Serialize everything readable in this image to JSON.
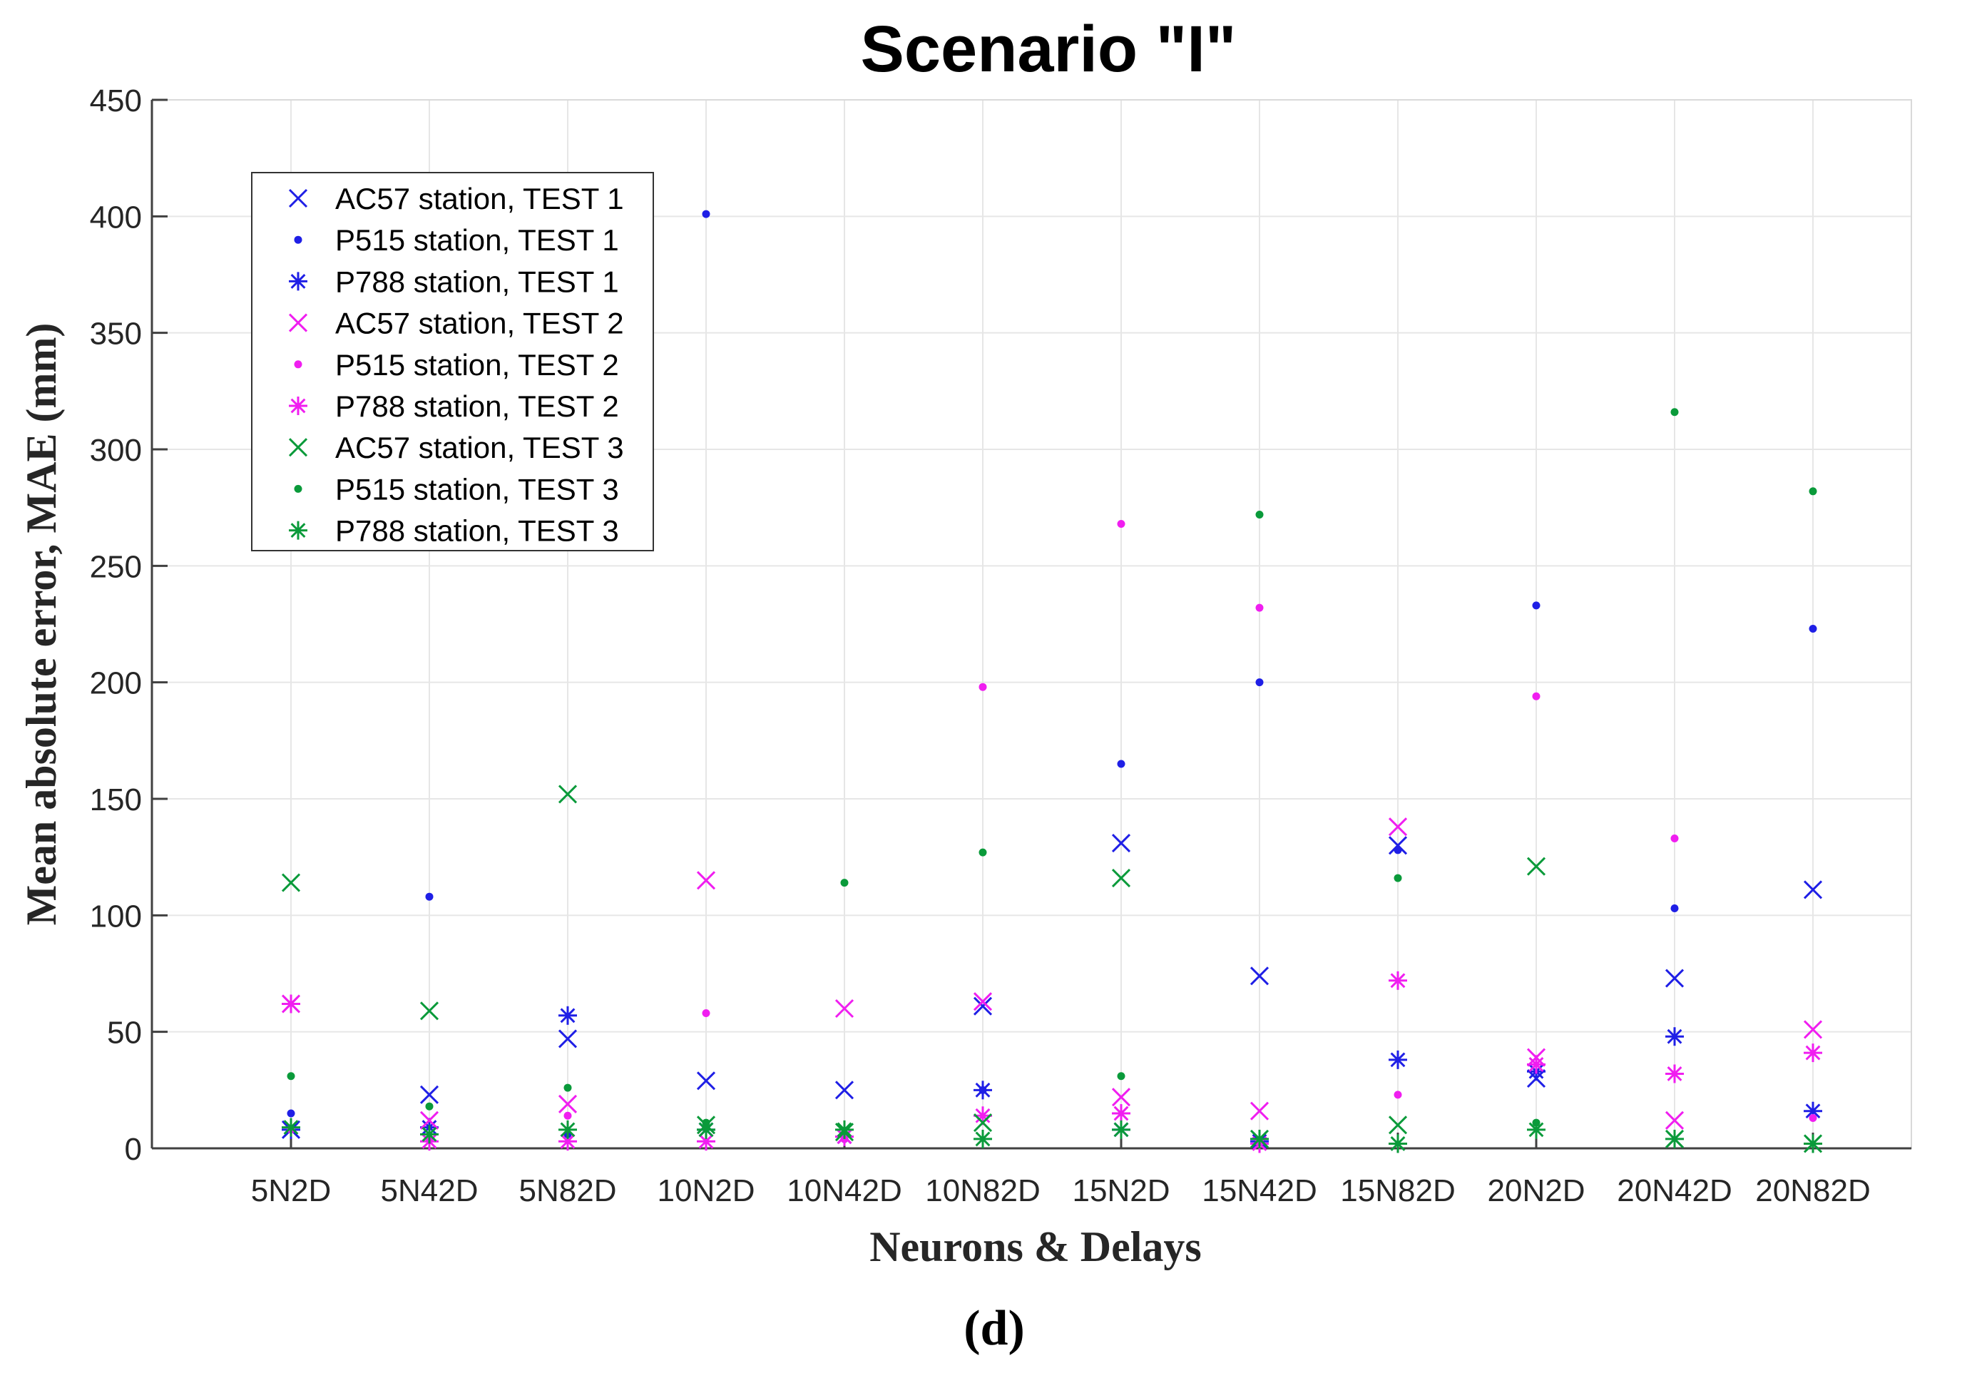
{
  "chart_data": {
    "type": "scatter",
    "title": "Scenario \"I\"",
    "xlabel": "Neurons & Delays",
    "ylabel": "Mean absolute error, MAE (mm)",
    "panel_label": "(d)",
    "ylim": [
      0,
      450
    ],
    "yticks": [
      0,
      50,
      100,
      150,
      200,
      250,
      300,
      350,
      400,
      450
    ],
    "grid": true,
    "legend_position": "top-left",
    "categories": [
      "5N2D",
      "5N42D",
      "5N82D",
      "10N2D",
      "10N42D",
      "10N82D",
      "15N2D",
      "15N42D",
      "15N82D",
      "20N2D",
      "20N42D",
      "20N82D"
    ],
    "colors": {
      "blue": "#1f1fe6",
      "magenta": "#f01ef0",
      "green": "#0a9a3a",
      "axis": "#404040",
      "grid": "#e6e6e6"
    },
    "series": [
      {
        "name": "AC57 station, TEST 1",
        "marker": "x",
        "color": "#1f1fe6",
        "values": [
          8,
          23,
          47,
          29,
          25,
          61,
          131,
          74,
          130,
          30,
          73,
          111
        ]
      },
      {
        "name": "P515 station, TEST 1",
        "marker": "dot",
        "color": "#1f1fe6",
        "values": [
          15,
          108,
          6,
          401,
          4,
          25,
          165,
          200,
          128,
          233,
          103,
          223
        ]
      },
      {
        "name": "P788 station, TEST 1",
        "marker": "star",
        "color": "#1f1fe6",
        "values": [
          8,
          9,
          57,
          8,
          5,
          25,
          8,
          3,
          38,
          33,
          48,
          16
        ]
      },
      {
        "name": "AC57 station, TEST 2",
        "marker": "x",
        "color": "#f01ef0",
        "values": [
          62,
          12,
          19,
          115,
          60,
          63,
          22,
          16,
          138,
          39,
          12,
          51
        ]
      },
      {
        "name": "P515 station, TEST 2",
        "marker": "dot",
        "color": "#f01ef0",
        "values": [
          8,
          4,
          14,
          58,
          4,
          198,
          268,
          232,
          23,
          194,
          133,
          13
        ]
      },
      {
        "name": "P788 station, TEST 2",
        "marker": "star",
        "color": "#f01ef0",
        "values": [
          62,
          3,
          3,
          3,
          5,
          14,
          15,
          2,
          72,
          36,
          32,
          41
        ]
      },
      {
        "name": "AC57 station, TEST 3",
        "marker": "x",
        "color": "#0a9a3a",
        "values": [
          114,
          59,
          152,
          10,
          7,
          11,
          116,
          4,
          10,
          121,
          4,
          2
        ]
      },
      {
        "name": "P515 station, TEST 3",
        "marker": "dot",
        "color": "#0a9a3a",
        "values": [
          31,
          18,
          26,
          11,
          114,
          127,
          31,
          272,
          116,
          11,
          316,
          282
        ]
      },
      {
        "name": "P788 station, TEST 3",
        "marker": "star",
        "color": "#0a9a3a",
        "values": [
          9,
          6,
          8,
          8,
          8,
          4,
          8,
          4,
          2,
          8,
          4,
          2
        ]
      }
    ]
  }
}
